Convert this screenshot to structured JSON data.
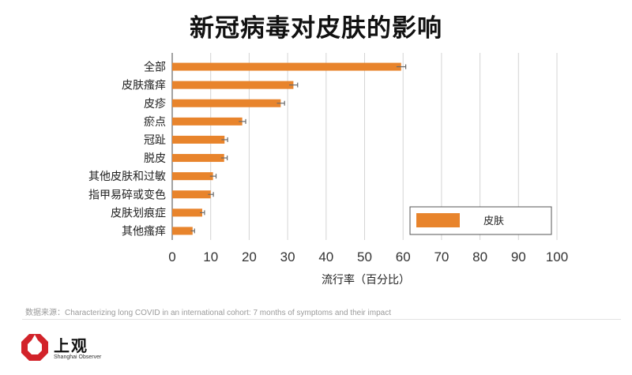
{
  "chart_data": {
    "type": "bar",
    "orientation": "horizontal",
    "title": "新冠病毒对皮肤的影响",
    "xlabel": "流行率（百分比）",
    "ylabel": "",
    "xlim": [
      0,
      100
    ],
    "xticks": [
      0,
      10,
      20,
      30,
      40,
      50,
      60,
      70,
      80,
      90,
      100
    ],
    "grid": "vertical",
    "legend": {
      "position": "bottom-right",
      "entries": [
        "皮肤"
      ]
    },
    "categories": [
      "全部",
      "皮肤瘙痒",
      "皮疹",
      "瘀点",
      "冠趾",
      "脱皮",
      "其他皮肤和过敏",
      "指甲易碎或变色",
      "皮肤划痕症",
      "其他瘙痒"
    ],
    "series": [
      {
        "name": "皮肤",
        "color": "#e8842c",
        "values": [
          59.5,
          31.5,
          28.2,
          18.2,
          13.6,
          13.5,
          10.6,
          10.0,
          7.8,
          5.3
        ],
        "error": [
          1.2,
          1.1,
          1.0,
          0.9,
          0.8,
          0.8,
          0.8,
          0.7,
          0.6,
          0.5
        ]
      }
    ]
  },
  "source_text": "数据来源：Characterizing long COVID in an international cohort: 7 months of symptoms and their impact",
  "branding": {
    "name_cn": "上观",
    "name_en": "Shanghai Observer",
    "logo_icon": "octagon-ring-logo-icon",
    "logo_color": "#d2232a"
  }
}
